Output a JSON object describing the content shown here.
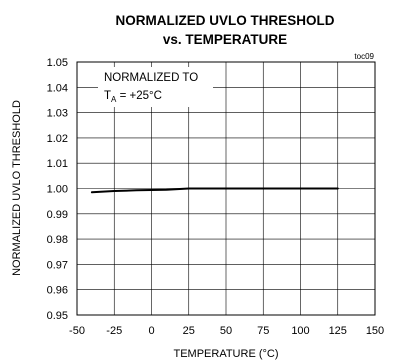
{
  "chart_data": {
    "type": "line",
    "title_line1": "NORMALIZED UVLO THRESHOLD",
    "title_line2": "vs. TEMPERATURE",
    "xlabel": "TEMPERATURE (°C)",
    "ylabel": "NORMALIZED UVLO THRESHOLD",
    "figure_tag": "toc09",
    "annotation_line1": "NORMALIZED TO",
    "annotation_sub_prefix": "T",
    "annotation_sub": "A",
    "annotation_line2_rest": " = +25°C",
    "xlim": [
      -50,
      150
    ],
    "ylim": [
      0.95,
      1.05
    ],
    "xticks": [
      "-50",
      "-25",
      "0",
      "25",
      "50",
      "75",
      "100",
      "125",
      "150"
    ],
    "yticks": [
      "0.95",
      "0.96",
      "0.97",
      "0.98",
      "0.99",
      "1.00",
      "1.01",
      "1.02",
      "1.03",
      "1.04",
      "1.05"
    ],
    "grid": true,
    "series": [
      {
        "x": [
          -40,
          -25,
          -10,
          0,
          10,
          25,
          40,
          60,
          85,
          105,
          125
        ],
        "y": [
          0.9985,
          0.999,
          0.9993,
          0.9994,
          0.9995,
          1.0,
          1.0,
          1.0,
          1.0,
          1.0,
          1.0
        ]
      }
    ]
  }
}
